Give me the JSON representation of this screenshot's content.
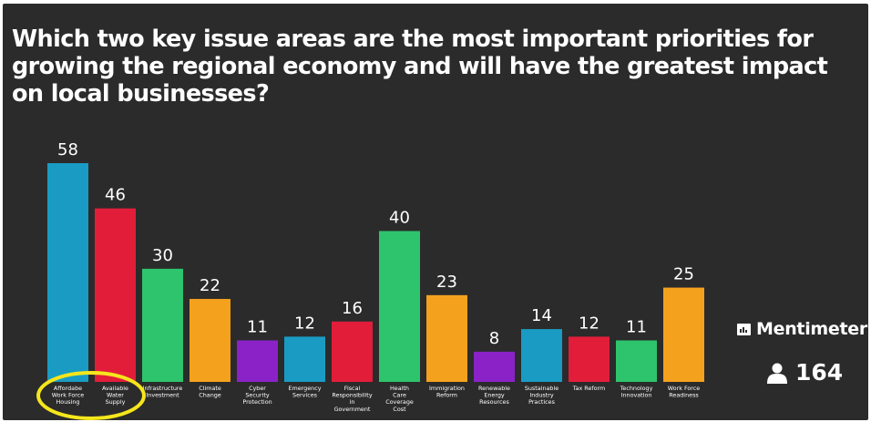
{
  "title": "Which two key issue areas are the most important priorities for growing the regional economy and will have the greatest impact on local businesses?",
  "brand": {
    "name": "Mentimeter",
    "icon": "mentimeter-logo-icon"
  },
  "participants": {
    "count": "164",
    "icon": "person-icon"
  },
  "highlight": {
    "color": "#f5e61c",
    "categories": [
      "Affordabe Work Force Housing",
      "Available Water Supply"
    ]
  },
  "colors": {
    "background": "#2b2b2b",
    "text": "#ffffff"
  },
  "chart_data": {
    "type": "bar",
    "title": "Which two key issue areas are the most important priorities for growing the regional economy and will have the greatest impact on local businesses?",
    "xlabel": "",
    "ylabel": "",
    "grid": false,
    "ylim": [
      0,
      58
    ],
    "categories": [
      "Affordabe Work Force Housing",
      "Available Water Supply",
      "Infrastructure Investment",
      "Climate Change",
      "Cyber Security Protection",
      "Emergency Services",
      "Fiscal Responsibility in Government",
      "Health Care Coverage Cost",
      "Immigration Reform",
      "Renewable Energy Resources",
      "Sustainable Industry Practices",
      "Tax Reform",
      "Technology Innovation",
      "Work Force Readiness"
    ],
    "values": [
      58,
      46,
      30,
      22,
      11,
      12,
      16,
      40,
      23,
      8,
      14,
      12,
      11,
      25
    ],
    "value_labels": [
      "58",
      "46",
      "30",
      "22",
      "11",
      "12",
      "16",
      "40",
      "23",
      "8",
      "14",
      "12",
      "11",
      "25"
    ],
    "label_lines": [
      [
        "Affordabe",
        "Work Force",
        "Housing"
      ],
      [
        "Available",
        "Water",
        "Supply"
      ],
      [
        "Infrastructure",
        "Investment"
      ],
      [
        "Climate",
        "Change"
      ],
      [
        "Cyber",
        "Security",
        "Protection"
      ],
      [
        "Emergency",
        "Services"
      ],
      [
        "Fiscal",
        "Responsibility",
        "in",
        "Government"
      ],
      [
        "Health",
        "Care",
        "Coverage",
        "Cost"
      ],
      [
        "Immigration",
        "Reform"
      ],
      [
        "Renewable",
        "Energy",
        "Resources"
      ],
      [
        "Sustainable",
        "Industry",
        "Practices"
      ],
      [
        "Tax Reform"
      ],
      [
        "Technology",
        "Innovation"
      ],
      [
        "Work Force",
        "Readiness"
      ]
    ],
    "bar_colors": [
      "#1a9bc4",
      "#e11d3a",
      "#2ec46d",
      "#f4a11d",
      "#8a22c8",
      "#1a9bc4",
      "#e11d3a",
      "#2ec46d",
      "#f4a11d",
      "#8a22c8",
      "#1a9bc4",
      "#e11d3a",
      "#2ec46d",
      "#f4a11d"
    ]
  }
}
